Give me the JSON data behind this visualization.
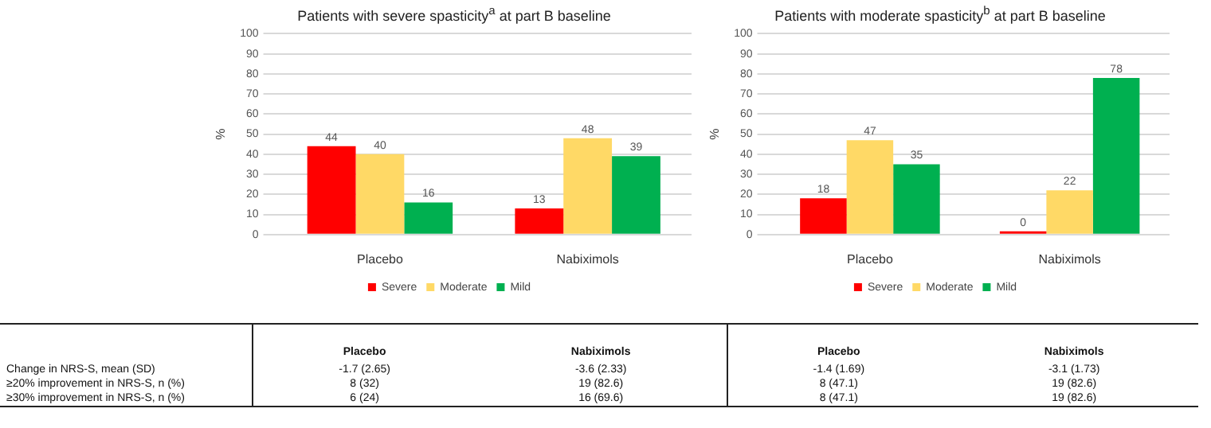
{
  "chart_data": [
    {
      "type": "bar",
      "title": "Patients with severe spasticity$^{a}$ at part B baseline",
      "ylabel": "%",
      "categories": [
        "Placebo",
        "Nabiximols"
      ],
      "series": [
        {
          "name": "Severe",
          "color": "#ff0000",
          "values": [
            44,
            13
          ]
        },
        {
          "name": "Moderate",
          "color": "#ffd966",
          "values": [
            40,
            48
          ]
        },
        {
          "name": "Mild",
          "color": "#00b050",
          "values": [
            16,
            39
          ]
        }
      ],
      "ylim": [
        0,
        100
      ],
      "yticks": [
        0,
        10,
        20,
        30,
        40,
        50,
        60,
        70,
        80,
        90,
        100
      ],
      "grid": "y",
      "legend": "bottom",
      "data_labels": true
    },
    {
      "type": "bar",
      "title": "Patients with moderate spasticity$^{b}$ at part B baseline",
      "ylabel": "%",
      "categories": [
        "Placebo",
        "Nabiximols"
      ],
      "series": [
        {
          "name": "Severe",
          "color": "#ff0000",
          "values": [
            18,
            0
          ]
        },
        {
          "name": "Moderate",
          "color": "#ffd966",
          "values": [
            47,
            22
          ]
        },
        {
          "name": "Mild",
          "color": "#00b050",
          "values": [
            35,
            78
          ]
        }
      ],
      "ylim": [
        0,
        100
      ],
      "yticks": [
        0,
        10,
        20,
        30,
        40,
        50,
        60,
        70,
        80,
        90,
        100
      ],
      "grid": "y",
      "legend": "bottom",
      "data_labels": true
    },
    {
      "type": "other",
      "categories": [
        "Placebo",
        "Nabiximols",
        "Placebo",
        "Nabiximols"
      ],
      "y_categories": [
        "Change in NRS-S, mean (SD)",
        "≥20% improvement in NRS-S, n (%)",
        "≥30% improvement in NRS-S, n (%)"
      ],
      "cell_labels": [
        [
          "-1.7 (2.65)",
          "-3.6 (2.33)",
          "-1.4 (1.69)",
          "-3.1 (1.73)"
        ],
        [
          "8 (32)",
          "19 (82.6)",
          "8 (47.1)",
          "19 (82.6)"
        ],
        [
          "6 (24)",
          "16 (69.6)",
          "8 (47.1)",
          "19 (82.6)"
        ]
      ]
    }
  ]
}
